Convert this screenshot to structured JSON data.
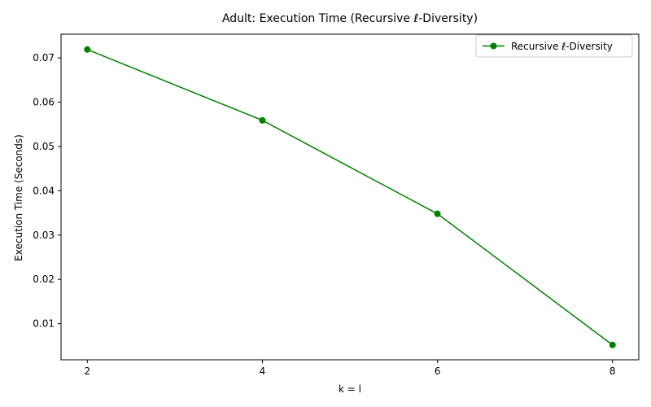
{
  "chart_data": {
    "type": "line",
    "title": "Adult: Execution Time (Recursive ℓ-Diversity)",
    "xlabel": "k = l",
    "ylabel": "Execution Time (Seconds)",
    "x": [
      2,
      4,
      6,
      8
    ],
    "x_ticks": [
      2,
      4,
      6,
      8
    ],
    "x_tick_labels": [
      "2",
      "4",
      "6",
      "8"
    ],
    "y_ticks": [
      0.01,
      0.02,
      0.03,
      0.04,
      0.05,
      0.06,
      0.07
    ],
    "y_tick_labels": [
      "0.01",
      "0.02",
      "0.03",
      "0.04",
      "0.05",
      "0.06",
      "0.07"
    ],
    "xlim": [
      1.7,
      8.3
    ],
    "ylim": [
      0.00185,
      0.07535
    ],
    "grid": false,
    "legend_position": "top-right",
    "series": [
      {
        "name": "Recursive ℓ-Diversity",
        "values": [
          0.0719,
          0.0559,
          0.0348,
          0.0052
        ],
        "color": "#008000",
        "marker": "circle"
      }
    ]
  }
}
